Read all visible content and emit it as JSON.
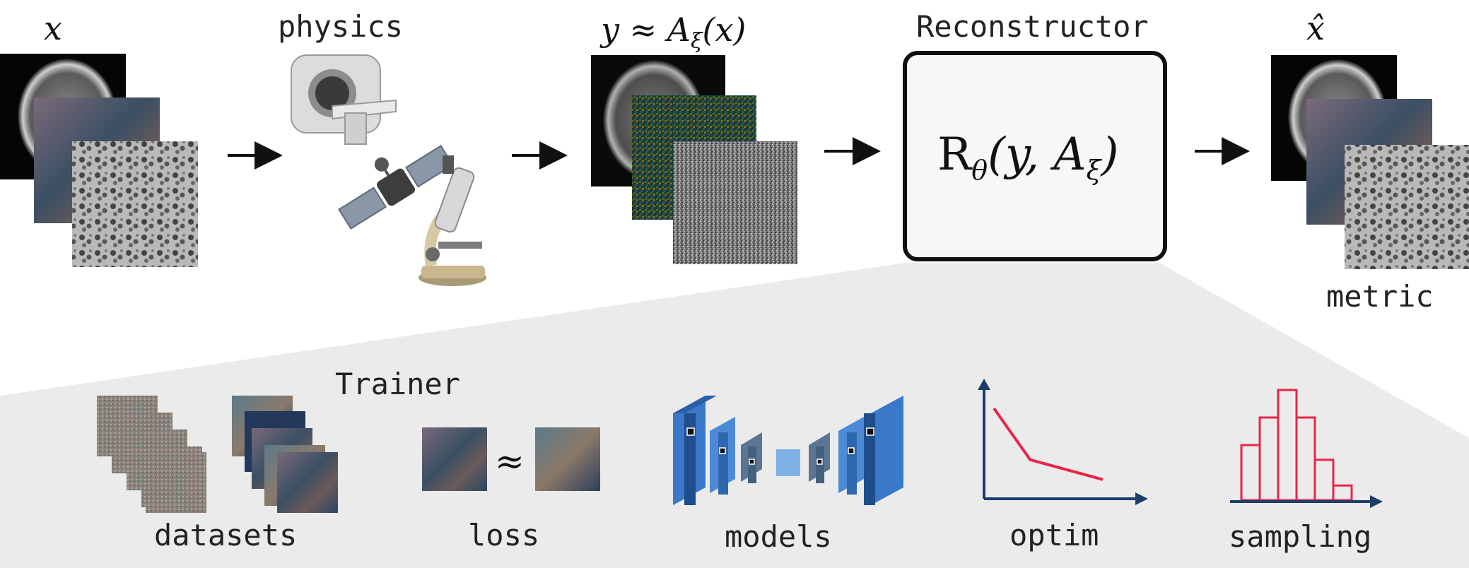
{
  "top": {
    "x_label": "x",
    "physics_label": "physics",
    "measurement_label_lhs": "y ≈ A",
    "measurement_label_sub": "ξ",
    "measurement_label_rhs": "(x)",
    "reconstructor_label": "Reconstructor",
    "reconstructor_formula_r": "R",
    "reconstructor_formula_theta": "θ",
    "reconstructor_formula_args": "(y, A",
    "reconstructor_formula_xi": "ξ",
    "reconstructor_formula_close": ")",
    "xhat_label": "x̂",
    "metric_label": "metric"
  },
  "trainer": {
    "title": "Trainer",
    "approx_symbol": "≈",
    "items": {
      "datasets": "datasets",
      "loss": "loss",
      "models": "models",
      "optim": "optim",
      "sampling": "sampling"
    }
  },
  "colors": {
    "panel_bg": "#ebebeb",
    "loss_curve": "#e8254a",
    "histogram": "#e8254a",
    "axis": "#1f3d6b",
    "model_dark": "#1f4e8c",
    "model_mid": "#3a78c9",
    "model_gray": "#5b7592",
    "model_light": "#7fb0e6"
  },
  "chart_data": [
    {
      "type": "line",
      "name_key": "optim",
      "x": [
        0,
        1,
        3
      ],
      "values": [
        10,
        3.5,
        1
      ]
    },
    {
      "type": "bar",
      "name_key": "sampling",
      "values": [
        3,
        4.5,
        6,
        4.5,
        2.2,
        0.8
      ]
    }
  ]
}
